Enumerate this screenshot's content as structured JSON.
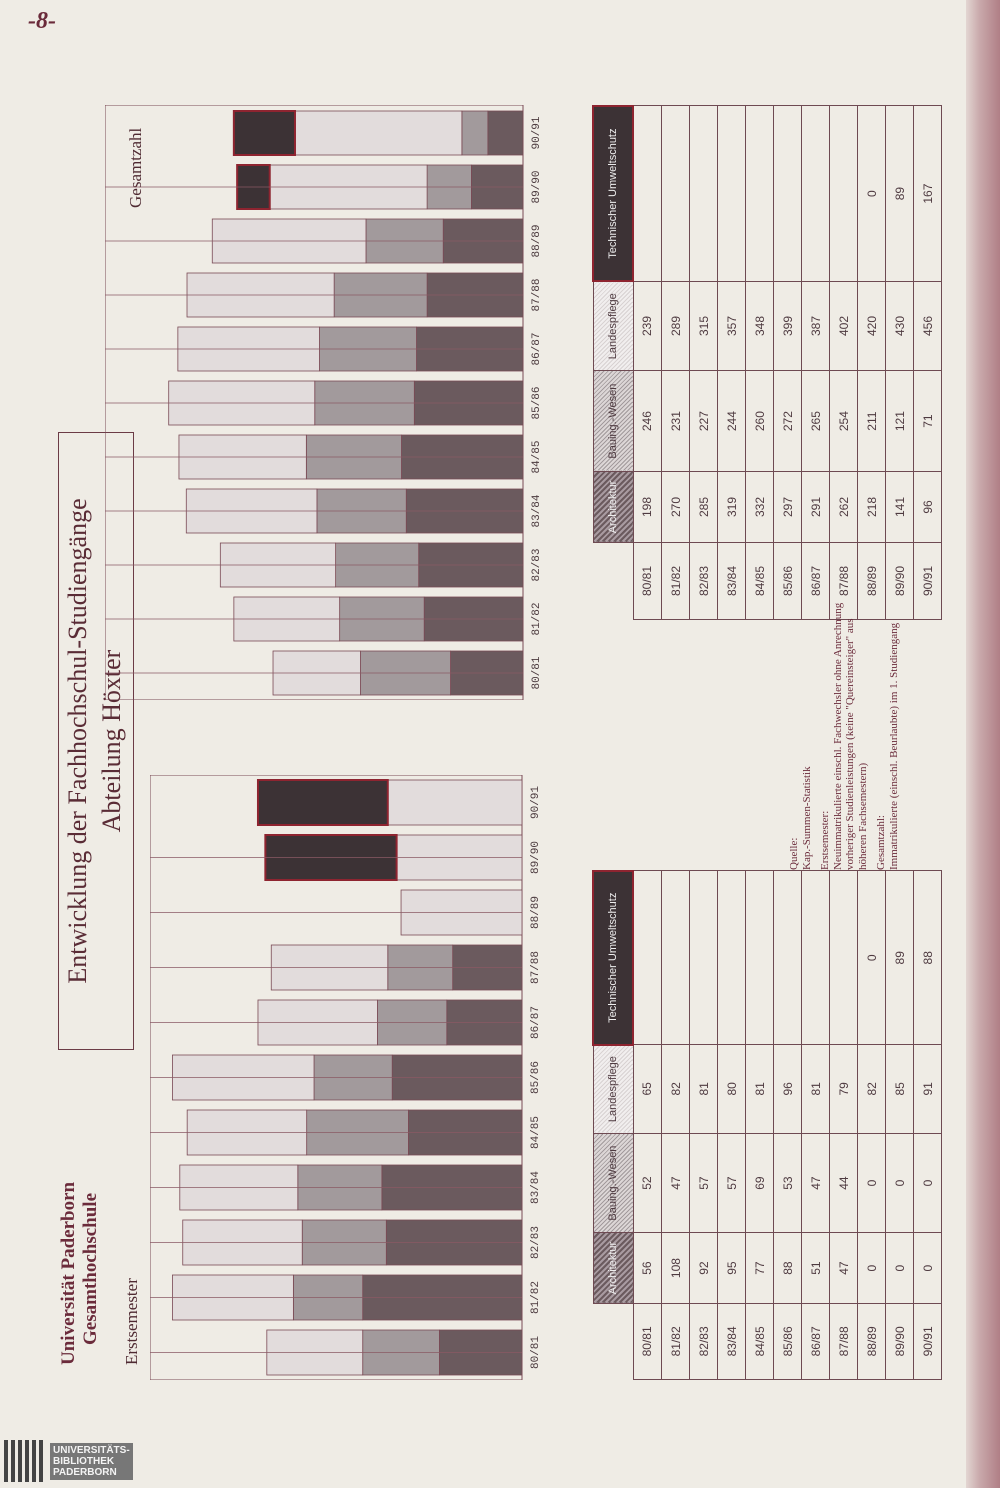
{
  "page_number": "-8-",
  "header": {
    "university": "Universität Paderborn",
    "school": "Gesamthochschule",
    "title_line1": "Entwicklung der Fachhochschul-Studiengänge",
    "title_line2": "Abteilung Höxter"
  },
  "series_names": [
    "Architektur",
    "Bauing.-Wesen",
    "Landespflege",
    "Technischer Umweltschutz"
  ],
  "colors": {
    "architektur": "#6b5a5e",
    "bauing": "#a29a9c",
    "landespflege": "#e2dcdc",
    "umweltschutz": "#3c3235",
    "accent_red": "#8e2430"
  },
  "notes": {
    "source_label": "Quelle:",
    "source_text": "Kap.-Summen-Statistik",
    "erst_label": "Erstsemester:",
    "erst_text": "Neuimmatrikulierte einschl. Fachwechsler ohne Anrechnung vorheriger Studienleistungen (keine \"Quereinsteiger\" aus höheren Fachsemestern)",
    "gesamt_label": "Gesamtzahl:",
    "gesamt_text": "Immatrikulierte (einschl. Beurlaubte) im 1. Studiengang"
  },
  "logo": {
    "line1": "UNIVERSITÄTS-",
    "line2": "BIBLIOTHEK",
    "line3": "PADERBORN"
  },
  "chart_data": [
    {
      "type": "bar",
      "stacked": true,
      "title": "Erstsemester",
      "categories": [
        "80/81",
        "81/82",
        "82/83",
        "83/84",
        "84/85",
        "85/86",
        "86/87",
        "87/88",
        "88/89",
        "89/90",
        "90/91"
      ],
      "series": [
        {
          "name": "Architektur",
          "values": [
            56,
            108,
            92,
            95,
            77,
            88,
            51,
            47,
            0,
            0,
            0
          ]
        },
        {
          "name": "Bauing.-Wesen",
          "values": [
            52,
            47,
            57,
            57,
            69,
            53,
            47,
            44,
            0,
            0,
            0
          ]
        },
        {
          "name": "Landespflege",
          "values": [
            65,
            82,
            81,
            80,
            81,
            96,
            81,
            79,
            82,
            85,
            91
          ]
        },
        {
          "name": "Technischer Umweltschutz",
          "values": [
            null,
            null,
            null,
            null,
            null,
            null,
            null,
            null,
            0,
            89,
            88
          ]
        }
      ]
    },
    {
      "type": "bar",
      "stacked": true,
      "title": "Gesamtzahl",
      "categories": [
        "80/81",
        "81/82",
        "82/83",
        "83/84",
        "84/85",
        "85/86",
        "86/87",
        "87/88",
        "88/89",
        "89/90",
        "90/91"
      ],
      "series": [
        {
          "name": "Architektur",
          "values": [
            198,
            270,
            285,
            319,
            332,
            297,
            291,
            262,
            218,
            141,
            96
          ]
        },
        {
          "name": "Bauing.-Wesen",
          "values": [
            246,
            231,
            227,
            244,
            260,
            272,
            265,
            254,
            211,
            121,
            71
          ]
        },
        {
          "name": "Landespflege",
          "values": [
            239,
            289,
            315,
            357,
            348,
            399,
            387,
            402,
            420,
            430,
            456
          ]
        },
        {
          "name": "Technischer Umweltschutz",
          "values": [
            null,
            null,
            null,
            null,
            null,
            null,
            null,
            null,
            0,
            89,
            167
          ]
        }
      ]
    }
  ]
}
